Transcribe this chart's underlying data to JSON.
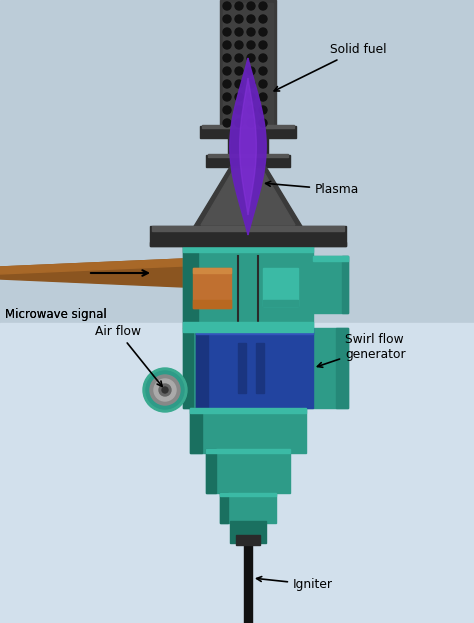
{
  "fig_width": 4.74,
  "fig_height": 6.23,
  "dpi": 100,
  "labels": {
    "solid_fuel": "Solid fuel",
    "plasma": "Plasma",
    "microwave": "Microwave signal",
    "air_flow": "Air flow",
    "swirl_flow": "Swirl flow\ngenerator",
    "igniter": "Igniter"
  },
  "colors": {
    "dark_gray": "#3a3a3a",
    "dark_gray2": "#2a2a2a",
    "gray_mid": "#555555",
    "gray_light": "#888888",
    "teal": "#2e9b88",
    "teal_light": "#3bbaa5",
    "teal_dark": "#1a7060",
    "teal_mid": "#258878",
    "blue_dark": "#1a3580",
    "blue_mid": "#2244a0",
    "blue_light": "#3355bb",
    "purple": "#6622bb",
    "purple_mid": "#8833dd",
    "brown": "#8b5520",
    "brown_light": "#a86828",
    "brown_dark": "#6b3f10",
    "orange_copper": "#c07030",
    "black": "#111111",
    "bg_top": "#b8c8d8",
    "bg_bot": "#d5e2ee"
  }
}
